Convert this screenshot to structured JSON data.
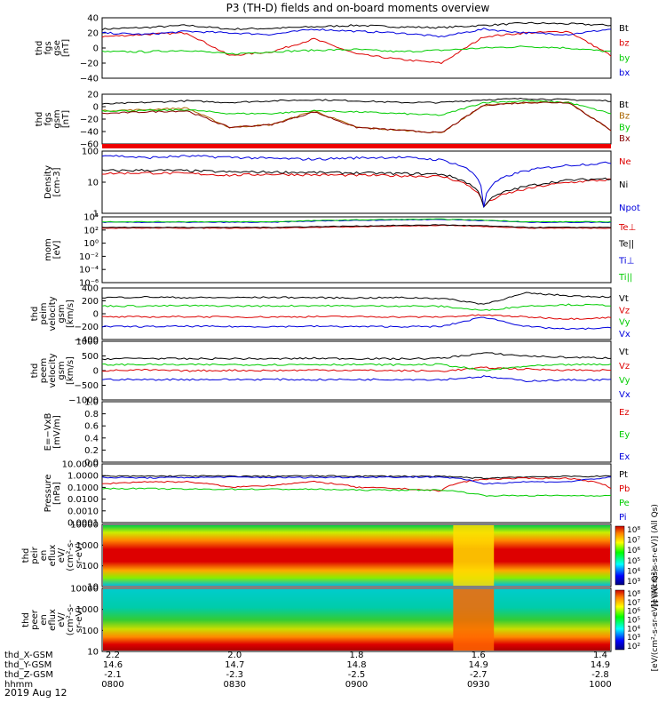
{
  "title": "P3 (TH-D) fields and on-board moments overview",
  "date_label": "2019 Aug 12",
  "x_axis_rows": [
    {
      "label": "thd_X-GSM",
      "ticks": [
        "2.2",
        "2.0",
        "1.8",
        "1.6",
        "1.4"
      ]
    },
    {
      "label": "thd_Y-GSM",
      "ticks": [
        "14.6",
        "14.7",
        "14.8",
        "14.9",
        "14.9"
      ]
    },
    {
      "label": "thd_Z-GSM",
      "ticks": [
        "-2.1",
        "-2.3",
        "-2.5",
        "-2.7",
        "-2.8"
      ]
    },
    {
      "label": "hhmm",
      "ticks": [
        "0800",
        "0830",
        "0900",
        "0930",
        "1000"
      ]
    }
  ],
  "chart_data": [
    {
      "type": "line",
      "ylabel": [
        "thd",
        "fgs",
        "gse",
        "[nT]"
      ],
      "ylim": [
        -40,
        40
      ],
      "yticks": [
        "40",
        "20",
        "0",
        "−20",
        "−40"
      ],
      "x": [
        "0800",
        "0810",
        "0820",
        "0830",
        "0840",
        "0850",
        "0900",
        "0910",
        "0920",
        "0930",
        "0940",
        "0950",
        "1000"
      ],
      "series": [
        {
          "name": "Bt",
          "color": "#000000",
          "values": [
            25,
            27,
            30,
            25,
            26,
            28,
            30,
            28,
            27,
            30,
            33,
            32,
            30
          ]
        },
        {
          "name": "bz",
          "color": "#dd0000",
          "values": [
            15,
            18,
            20,
            -10,
            -5,
            12,
            -8,
            -15,
            -20,
            15,
            20,
            22,
            -10
          ]
        },
        {
          "name": "by",
          "color": "#00cc00",
          "values": [
            -5,
            -5,
            -3,
            -8,
            -5,
            -3,
            -2,
            -5,
            -3,
            0,
            2,
            0,
            -5
          ]
        },
        {
          "name": "bx",
          "color": "#0000dd",
          "values": [
            20,
            18,
            22,
            20,
            18,
            25,
            22,
            20,
            15,
            25,
            20,
            18,
            25
          ]
        }
      ]
    },
    {
      "type": "line",
      "ylabel": [
        "thd",
        "fgs",
        "gsm",
        "[nT]"
      ],
      "ylim": [
        -70,
        20
      ],
      "yticks": [
        "20",
        "0",
        "−20",
        "−40",
        "−60"
      ],
      "x": [
        "0800",
        "0810",
        "0820",
        "0830",
        "0840",
        "0850",
        "0900",
        "0910",
        "0920",
        "0930",
        "0940",
        "0950",
        "1000"
      ],
      "series": [
        {
          "name": "Bt",
          "color": "#000000",
          "values": [
            2,
            5,
            8,
            5,
            8,
            10,
            8,
            5,
            5,
            10,
            12,
            10,
            8
          ]
        },
        {
          "name": "Bz",
          "color": "#aa6600",
          "values": [
            -10,
            -8,
            -5,
            -40,
            -35,
            -10,
            -40,
            -45,
            -50,
            0,
            5,
            5,
            -45
          ]
        },
        {
          "name": "By",
          "color": "#00cc00",
          "values": [
            -10,
            -10,
            -8,
            -15,
            -15,
            -10,
            -12,
            -15,
            -18,
            5,
            8,
            5,
            -15
          ]
        },
        {
          "name": "Bx",
          "color": "#880000",
          "values": [
            -15,
            -12,
            -10,
            -40,
            -35,
            -12,
            -40,
            -45,
            -50,
            0,
            5,
            5,
            -45
          ]
        }
      ]
    },
    {
      "type": "line",
      "ylabel": [
        "Density",
        "[cm-3]"
      ],
      "log_scale": true,
      "ylim": [
        0.5,
        300
      ],
      "yticks": [
        "100",
        "10",
        "1"
      ],
      "x": [
        "0800",
        "0810",
        "0820",
        "0830",
        "0840",
        "0850",
        "0900",
        "0910",
        "0920",
        "0930",
        "0940",
        "0950",
        "1000"
      ],
      "series": [
        {
          "name": "Ne",
          "color": "#dd0000",
          "values": [
            30,
            32,
            30,
            25,
            28,
            26,
            25,
            24,
            22,
            1,
            6,
            12,
            16
          ]
        },
        {
          "name": "Ni",
          "color": "#000000",
          "values": [
            40,
            42,
            40,
            35,
            35,
            33,
            32,
            30,
            28,
            1,
            8,
            15,
            18
          ]
        },
        {
          "name": "Npot",
          "color": "#0000dd",
          "values": [
            200,
            150,
            180,
            160,
            140,
            130,
            150,
            160,
            120,
            1,
            40,
            70,
            90
          ]
        }
      ]
    },
    {
      "type": "line",
      "ylabel": [
        "mom",
        "[eV]"
      ],
      "log_scale": true,
      "ylim": [
        1e-06,
        10000
      ],
      "yticks": [
        "10⁴",
        "10²",
        "10⁰",
        "10⁻²",
        "10⁻⁴",
        "10⁻⁶"
      ],
      "x": [
        "0800",
        "0830",
        "0900",
        "0915",
        "0920",
        "0930",
        "1000"
      ],
      "series": [
        {
          "name": "Te⊥",
          "color": "#dd0000",
          "values": [
            200,
            200,
            200,
            300,
            500,
            200,
            200
          ]
        },
        {
          "name": "Te||",
          "color": "#000000",
          "values": [
            250,
            250,
            250,
            400,
            600,
            250,
            250
          ]
        },
        {
          "name": "Ti⊥",
          "color": "#0000dd",
          "values": [
            1500,
            1500,
            1500,
            3000,
            4000,
            1500,
            1500
          ]
        },
        {
          "name": "Ti||",
          "color": "#00cc00",
          "values": [
            1800,
            1800,
            1800,
            3500,
            4500,
            1800,
            1800
          ]
        }
      ]
    },
    {
      "type": "line",
      "ylabel": [
        "thd",
        "peim",
        "velocity",
        "gsm",
        "[km/s]"
      ],
      "ylim": [
        -400,
        400
      ],
      "yticks": [
        "400",
        "200",
        "0",
        "−200",
        "−400"
      ],
      "x": [
        "0800",
        "0810",
        "0820",
        "0830",
        "0840",
        "0850",
        "0900",
        "0910",
        "0920",
        "0930",
        "0940",
        "0950",
        "1000"
      ],
      "series": [
        {
          "name": "Vt",
          "color": "#000000",
          "values": [
            250,
            260,
            250,
            250,
            255,
            250,
            245,
            250,
            240,
            150,
            320,
            280,
            260
          ]
        },
        {
          "name": "Vz",
          "color": "#dd0000",
          "values": [
            -50,
            -50,
            -45,
            -50,
            -50,
            -45,
            -45,
            -50,
            -50,
            -20,
            -50,
            -80,
            -60
          ]
        },
        {
          "name": "Vy",
          "color": "#00cc00",
          "values": [
            120,
            120,
            125,
            120,
            120,
            125,
            120,
            120,
            115,
            50,
            120,
            140,
            130
          ]
        },
        {
          "name": "Vx",
          "color": "#0000dd",
          "values": [
            -200,
            -200,
            -195,
            -200,
            -200,
            -195,
            -200,
            -200,
            -200,
            -50,
            -200,
            -240,
            -220
          ]
        }
      ]
    },
    {
      "type": "line",
      "ylabel": [
        "thd",
        "peem",
        "velocity",
        "gsm",
        "[km/s]"
      ],
      "ylim": [
        -1000,
        1000
      ],
      "yticks": [
        "1000",
        "500",
        "0",
        "−500",
        "−1000"
      ],
      "x": [
        "0800",
        "0810",
        "0820",
        "0830",
        "0840",
        "0850",
        "0900",
        "0910",
        "0920",
        "0930",
        "0940",
        "0950",
        "1000"
      ],
      "series": [
        {
          "name": "Vt",
          "color": "#000000",
          "values": [
            400,
            420,
            400,
            410,
            400,
            420,
            410,
            400,
            420,
            600,
            500,
            450,
            430
          ]
        },
        {
          "name": "Vz",
          "color": "#dd0000",
          "values": [
            0,
            20,
            -10,
            10,
            0,
            20,
            10,
            0,
            -20,
            100,
            50,
            20,
            10
          ]
        },
        {
          "name": "Vy",
          "color": "#00cc00",
          "values": [
            200,
            210,
            200,
            205,
            200,
            210,
            205,
            200,
            210,
            0,
            150,
            200,
            210
          ]
        },
        {
          "name": "Vx",
          "color": "#0000dd",
          "values": [
            -300,
            -310,
            -300,
            -305,
            -300,
            -310,
            -305,
            -300,
            -310,
            -200,
            -350,
            -320,
            -310
          ]
        }
      ]
    },
    {
      "type": "line",
      "ylabel": [
        "E=−VxB",
        "[mV/m]"
      ],
      "ylim": [
        0,
        1
      ],
      "yticks": [
        "1.0",
        "0.8",
        "0.6",
        "0.4",
        "0.2",
        "0.0"
      ],
      "series": [
        {
          "name": "Ez",
          "color": "#dd0000",
          "values": []
        },
        {
          "name": "Ey",
          "color": "#00cc00",
          "values": []
        },
        {
          "name": "Ex",
          "color": "#0000dd",
          "values": []
        }
      ]
    },
    {
      "type": "line",
      "ylabel": [
        "Pressure",
        "[nPa]"
      ],
      "log_scale": true,
      "ylim": [
        0.0001,
        10
      ],
      "yticks": [
        "10.0000",
        "1.0000",
        "0.1000",
        "0.0100",
        "0.0010",
        "0.0001"
      ],
      "x": [
        "0800",
        "0810",
        "0820",
        "0830",
        "0840",
        "0850",
        "0900",
        "0910",
        "0920",
        "0930",
        "0940",
        "0950",
        "1000"
      ],
      "series": [
        {
          "name": "Pt",
          "color": "#000000",
          "values": [
            0.9,
            0.9,
            0.95,
            0.9,
            0.9,
            0.95,
            0.9,
            0.9,
            0.85,
            0.6,
            0.8,
            0.85,
            0.9
          ]
        },
        {
          "name": "Pb",
          "color": "#dd0000",
          "values": [
            0.2,
            0.3,
            0.3,
            0.1,
            0.15,
            0.3,
            0.1,
            0.08,
            0.05,
            0.5,
            0.6,
            0.6,
            0.08
          ]
        },
        {
          "name": "Pe",
          "color": "#00cc00",
          "values": [
            0.08,
            0.08,
            0.07,
            0.07,
            0.07,
            0.07,
            0.06,
            0.06,
            0.06,
            0.02,
            0.02,
            0.02,
            0.02
          ]
        },
        {
          "name": "Pi",
          "color": "#0000dd",
          "values": [
            0.7,
            0.65,
            0.7,
            0.75,
            0.7,
            0.7,
            0.75,
            0.75,
            0.78,
            0.2,
            0.3,
            0.3,
            0.7
          ]
        }
      ]
    },
    {
      "type": "heatmap",
      "ylabel": [
        "thd",
        "peir",
        "en",
        "eflux",
        "eV/",
        "(cm²-s-",
        "sr-eV)"
      ],
      "log_scale": true,
      "ylim": [
        5,
        30000
      ],
      "yticks": [
        "10000",
        "1000",
        "100",
        "10"
      ],
      "colorbar_label": "[eV/(cm²-s-sr-eV)] (All Qs)",
      "colorbar_ticks": [
        "10⁸",
        "10⁷",
        "10⁶",
        "10⁵",
        "10⁴",
        "10³"
      ]
    },
    {
      "type": "heatmap",
      "ylabel": [
        "thd",
        "peer",
        "en",
        "eflux",
        "eV/",
        "(cm²-s-",
        "sr-eV)"
      ],
      "log_scale": true,
      "ylim": [
        5,
        30000
      ],
      "yticks": [
        "10000",
        "1000",
        "100",
        "10"
      ],
      "colorbar_label": "[eV/(cm²-s-sr-eV)] (All Qs)",
      "colorbar_ticks": [
        "10⁸",
        "10⁷",
        "10⁶",
        "10⁵",
        "10⁴",
        "10³",
        "10²"
      ]
    }
  ]
}
